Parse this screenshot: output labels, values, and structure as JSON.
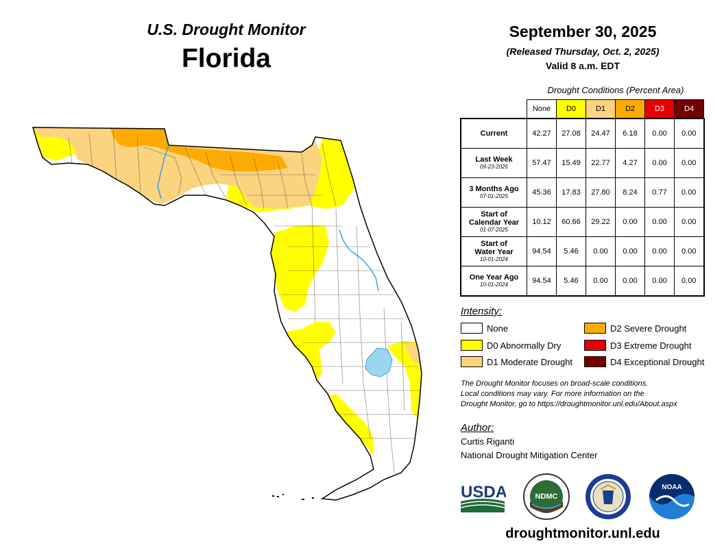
{
  "header": {
    "subtitle": "U.S. Drought Monitor",
    "state": "Florida",
    "date": "September 30, 2025",
    "released": "(Released Thursday, Oct. 2, 2025)",
    "valid": "Valid 8 a.m. EDT"
  },
  "table": {
    "caption": "Drought Conditions (Percent Area)",
    "columns": [
      {
        "label": "None",
        "color": "#ffffff",
        "text_color": "#000000"
      },
      {
        "label": "D0",
        "color": "#ffff00",
        "text_color": "#000000"
      },
      {
        "label": "D1",
        "color": "#fcd37f",
        "text_color": "#000000"
      },
      {
        "label": "D2",
        "color": "#ffaa00",
        "text_color": "#000000"
      },
      {
        "label": "D3",
        "color": "#e60000",
        "text_color": "#ffffff"
      },
      {
        "label": "D4",
        "color": "#730000",
        "text_color": "#ffffff"
      }
    ],
    "rows": [
      {
        "label": "Current",
        "label2": "",
        "date": "",
        "values": [
          "42.27",
          "27.08",
          "24.47",
          "6.18",
          "0.00",
          "0.00"
        ]
      },
      {
        "label": "Last Week",
        "label2": "",
        "date": "09-23-2025",
        "values": [
          "57.47",
          "15.49",
          "22.77",
          "4.27",
          "0.00",
          "0.00"
        ]
      },
      {
        "label": "3 Months Ago",
        "label2": "",
        "date": "07-01-2025",
        "values": [
          "45.36",
          "17.83",
          "27.80",
          "8.24",
          "0.77",
          "0.00"
        ]
      },
      {
        "label": "Start of",
        "label2": "Calendar Year",
        "date": "01-07-2025",
        "values": [
          "10.12",
          "60.66",
          "29.22",
          "0.00",
          "0.00",
          "0.00"
        ]
      },
      {
        "label": "Start of",
        "label2": "Water Year",
        "date": "10-01-2024",
        "values": [
          "94.54",
          "5.46",
          "0.00",
          "0.00",
          "0.00",
          "0.00"
        ]
      },
      {
        "label": "One Year Ago",
        "label2": "",
        "date": "10-01-2024",
        "values": [
          "94.54",
          "5.46",
          "0.00",
          "0.00",
          "0.00",
          "0.00"
        ]
      }
    ]
  },
  "legend": {
    "title": "Intensity:",
    "items": [
      {
        "label": "None",
        "color": "#ffffff"
      },
      {
        "label": "D0 Abnormally Dry",
        "color": "#ffff00"
      },
      {
        "label": "D1 Moderate Drought",
        "color": "#fcd37f"
      },
      {
        "label": "D2 Severe Drought",
        "color": "#ffaa00"
      },
      {
        "label": "D3 Extreme Drought",
        "color": "#e60000"
      },
      {
        "label": "D4 Exceptional Drought",
        "color": "#730000"
      }
    ]
  },
  "note": {
    "line1": "The Drought Monitor focuses on broad-scale conditions.",
    "line2": "Local conditions may vary. For more information on the",
    "line3": "Drought Monitor, go to https://droughtmonitor.unl.edu/About.aspx"
  },
  "author": {
    "title": "Author:",
    "name": "Curtis Riganti",
    "org": "National Drought Mitigation Center"
  },
  "logos": {
    "usda": "USDA",
    "ndmc": "NDMC",
    "noaa": "NOAA"
  },
  "footer": {
    "url": "droughtmonitor.unl.edu"
  },
  "map": {
    "water_color": "#9ad7ef",
    "river_color": "#3aa0e0"
  }
}
